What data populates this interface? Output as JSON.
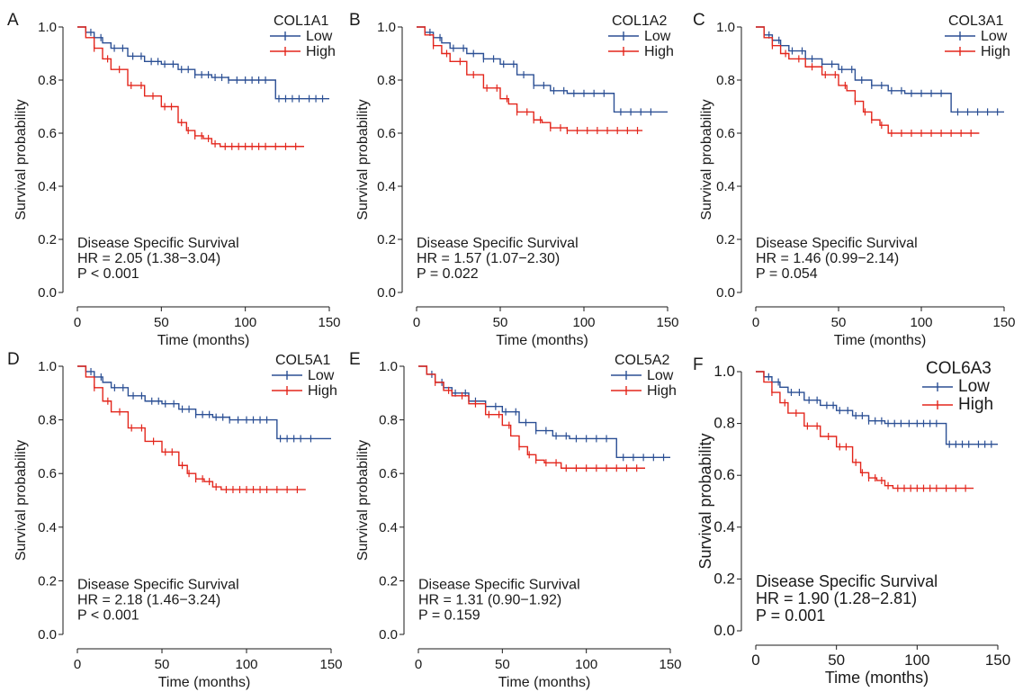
{
  "colors": {
    "low": "#2b4f94",
    "high": "#e3261c",
    "axis": "#1a1a1a"
  },
  "chart_data": [
    {
      "type": "line",
      "panel": "A",
      "gene": "COL1A1",
      "xlabel": "Time (months)",
      "ylabel": "Survival probability",
      "xlim": [
        0,
        150
      ],
      "ylim": [
        0,
        1
      ],
      "xticks": [
        "0",
        "50",
        "100",
        "150"
      ],
      "yticks": [
        "0.0",
        "0.2",
        "0.4",
        "0.6",
        "0.8",
        "1.0"
      ],
      "annotation": [
        "Disease Specific Survival",
        "HR = 2.05 (1.38−3.04)",
        "P < 0.001"
      ],
      "legend": {
        "title": "COL1A1",
        "entries": [
          "Low",
          "High"
        ]
      },
      "series": [
        {
          "name": "Low",
          "color": "#2b4f94",
          "x": [
            0,
            5,
            10,
            15,
            20,
            30,
            40,
            50,
            60,
            70,
            80,
            90,
            100,
            110,
            117,
            118,
            150
          ],
          "y": [
            1,
            0.98,
            0.96,
            0.94,
            0.92,
            0.89,
            0.87,
            0.86,
            0.84,
            0.82,
            0.81,
            0.8,
            0.8,
            0.8,
            0.8,
            0.73,
            0.73
          ],
          "censor_x": [
            8,
            14,
            22,
            27,
            33,
            38,
            44,
            48,
            52,
            57,
            62,
            66,
            70,
            74,
            78,
            82,
            86,
            90,
            95,
            100,
            104,
            108,
            112,
            120,
            124,
            128,
            132,
            138,
            142,
            146
          ]
        },
        {
          "name": "High",
          "color": "#e3261c",
          "x": [
            0,
            5,
            10,
            15,
            20,
            30,
            40,
            50,
            60,
            65,
            70,
            75,
            80,
            85,
            135
          ],
          "y": [
            1,
            0.96,
            0.92,
            0.88,
            0.84,
            0.78,
            0.74,
            0.7,
            0.64,
            0.61,
            0.59,
            0.58,
            0.56,
            0.55,
            0.55
          ],
          "censor_x": [
            10,
            18,
            25,
            32,
            38,
            45,
            52,
            56,
            62,
            66,
            70,
            74,
            78,
            82,
            88,
            92,
            96,
            100,
            104,
            108,
            112,
            118,
            124,
            130
          ]
        }
      ]
    },
    {
      "type": "line",
      "panel": "B",
      "gene": "COL1A2",
      "xlabel": "Time (months)",
      "ylabel": "Survival probability",
      "xlim": [
        0,
        150
      ],
      "ylim": [
        0,
        1
      ],
      "xticks": [
        "0",
        "50",
        "100",
        "150"
      ],
      "yticks": [
        "0.0",
        "0.2",
        "0.4",
        "0.6",
        "0.8",
        "1.0"
      ],
      "annotation": [
        "Disease Specific Survival",
        "HR = 1.57 (1.07−2.30)",
        "P = 0.022"
      ],
      "legend": {
        "title": "COL1A2",
        "entries": [
          "Low",
          "High"
        ]
      },
      "series": [
        {
          "name": "Low",
          "color": "#2b4f94",
          "x": [
            0,
            5,
            10,
            15,
            20,
            30,
            40,
            50,
            60,
            70,
            80,
            90,
            100,
            110,
            117,
            118,
            150
          ],
          "y": [
            1,
            0.98,
            0.96,
            0.94,
            0.92,
            0.9,
            0.88,
            0.86,
            0.82,
            0.78,
            0.76,
            0.75,
            0.75,
            0.75,
            0.75,
            0.68,
            0.68
          ],
          "censor_x": [
            8,
            14,
            22,
            28,
            34,
            40,
            46,
            52,
            58,
            64,
            70,
            76,
            82,
            88,
            94,
            100,
            106,
            112,
            122,
            128,
            134,
            140
          ]
        },
        {
          "name": "High",
          "color": "#e3261c",
          "x": [
            0,
            5,
            10,
            15,
            20,
            30,
            40,
            50,
            55,
            60,
            70,
            75,
            80,
            90,
            135
          ],
          "y": [
            1,
            0.97,
            0.93,
            0.9,
            0.87,
            0.82,
            0.77,
            0.73,
            0.71,
            0.68,
            0.65,
            0.64,
            0.62,
            0.61,
            0.61
          ],
          "censor_x": [
            10,
            18,
            26,
            34,
            42,
            48,
            54,
            60,
            66,
            70,
            74,
            80,
            86,
            90,
            96,
            102,
            108,
            114,
            120,
            126,
            132
          ]
        }
      ]
    },
    {
      "type": "line",
      "panel": "C",
      "gene": "COL3A1",
      "xlabel": "Time (months)",
      "ylabel": "Survival probability",
      "xlim": [
        0,
        150
      ],
      "ylim": [
        0,
        1
      ],
      "xticks": [
        "0",
        "50",
        "100",
        "150"
      ],
      "yticks": [
        "0.0",
        "0.2",
        "0.4",
        "0.6",
        "0.8",
        "1.0"
      ],
      "annotation": [
        "Disease Specific Survival",
        "HR = 1.46 (0.99−2.14)",
        "P = 0.054"
      ],
      "legend": {
        "title": "COL3A1",
        "entries": [
          "Low",
          "High"
        ]
      },
      "series": [
        {
          "name": "Low",
          "color": "#2b4f94",
          "x": [
            0,
            5,
            10,
            15,
            20,
            30,
            40,
            50,
            60,
            70,
            80,
            90,
            100,
            110,
            117,
            118,
            150
          ],
          "y": [
            1,
            0.97,
            0.95,
            0.93,
            0.91,
            0.88,
            0.86,
            0.84,
            0.8,
            0.78,
            0.76,
            0.75,
            0.75,
            0.75,
            0.75,
            0.68,
            0.68
          ],
          "censor_x": [
            8,
            14,
            22,
            28,
            34,
            40,
            46,
            52,
            58,
            64,
            70,
            76,
            82,
            88,
            94,
            100,
            106,
            112,
            122,
            128,
            134,
            140,
            146
          ]
        },
        {
          "name": "High",
          "color": "#e3261c",
          "x": [
            0,
            5,
            10,
            15,
            20,
            30,
            40,
            50,
            55,
            60,
            65,
            70,
            75,
            80,
            135
          ],
          "y": [
            1,
            0.96,
            0.93,
            0.9,
            0.88,
            0.85,
            0.82,
            0.78,
            0.76,
            0.72,
            0.68,
            0.65,
            0.63,
            0.6,
            0.6
          ],
          "censor_x": [
            10,
            18,
            26,
            34,
            42,
            48,
            54,
            60,
            66,
            70,
            76,
            82,
            88,
            94,
            100,
            106,
            112,
            118,
            124,
            130
          ]
        }
      ]
    },
    {
      "type": "line",
      "panel": "D",
      "gene": "COL5A1",
      "xlabel": "Time (months)",
      "ylabel": "Survival probability",
      "xlim": [
        0,
        150
      ],
      "ylim": [
        0,
        1
      ],
      "xticks": [
        "0",
        "50",
        "100",
        "150"
      ],
      "yticks": [
        "0.0",
        "0.2",
        "0.4",
        "0.6",
        "0.8",
        "1.0"
      ],
      "annotation": [
        "Disease Specific Survival",
        "HR = 2.18 (1.46−3.24)",
        "P < 0.001"
      ],
      "legend": {
        "title": "COL5A1",
        "entries": [
          "Low",
          "High"
        ]
      },
      "series": [
        {
          "name": "Low",
          "color": "#2b4f94",
          "x": [
            0,
            5,
            10,
            15,
            20,
            30,
            40,
            50,
            60,
            70,
            80,
            90,
            100,
            110,
            117,
            118,
            150
          ],
          "y": [
            1,
            0.98,
            0.96,
            0.94,
            0.92,
            0.89,
            0.87,
            0.86,
            0.84,
            0.82,
            0.81,
            0.8,
            0.8,
            0.8,
            0.8,
            0.73,
            0.73
          ],
          "censor_x": [
            8,
            14,
            22,
            27,
            33,
            38,
            44,
            48,
            52,
            57,
            62,
            66,
            70,
            74,
            78,
            82,
            86,
            90,
            95,
            100,
            104,
            108,
            112,
            120,
            124,
            128,
            132,
            138
          ]
        },
        {
          "name": "High",
          "color": "#e3261c",
          "x": [
            0,
            5,
            10,
            15,
            20,
            30,
            40,
            50,
            60,
            65,
            70,
            75,
            80,
            85,
            135
          ],
          "y": [
            1,
            0.96,
            0.92,
            0.87,
            0.83,
            0.77,
            0.72,
            0.68,
            0.63,
            0.6,
            0.58,
            0.57,
            0.55,
            0.54,
            0.54
          ],
          "censor_x": [
            10,
            18,
            25,
            32,
            38,
            45,
            52,
            56,
            62,
            66,
            70,
            74,
            78,
            82,
            88,
            92,
            96,
            100,
            104,
            108,
            112,
            118,
            124,
            130
          ]
        }
      ]
    },
    {
      "type": "line",
      "panel": "E",
      "gene": "COL5A2",
      "xlabel": "Time (months)",
      "ylabel": "Survival probability",
      "xlim": [
        0,
        150
      ],
      "ylim": [
        0,
        1
      ],
      "xticks": [
        "0",
        "50",
        "100",
        "150"
      ],
      "yticks": [
        "0.0",
        "0.2",
        "0.4",
        "0.6",
        "0.8",
        "1.0"
      ],
      "annotation": [
        "Disease Specific Survival",
        "HR = 1.31 (0.90−1.92)",
        "P = 0.159"
      ],
      "legend": {
        "title": "COL5A2",
        "entries": [
          "Low",
          "High"
        ]
      },
      "series": [
        {
          "name": "Low",
          "color": "#2b4f94",
          "x": [
            0,
            5,
            10,
            15,
            20,
            30,
            40,
            50,
            60,
            70,
            80,
            90,
            100,
            110,
            117,
            118,
            150
          ],
          "y": [
            1,
            0.97,
            0.94,
            0.92,
            0.9,
            0.87,
            0.85,
            0.83,
            0.79,
            0.76,
            0.74,
            0.73,
            0.73,
            0.73,
            0.73,
            0.66,
            0.66
          ],
          "censor_x": [
            8,
            14,
            22,
            28,
            34,
            40,
            46,
            52,
            58,
            64,
            70,
            76,
            82,
            88,
            94,
            100,
            106,
            112,
            122,
            128,
            134,
            140,
            146
          ]
        },
        {
          "name": "High",
          "color": "#e3261c",
          "x": [
            0,
            5,
            10,
            15,
            20,
            30,
            40,
            50,
            55,
            60,
            65,
            70,
            75,
            85,
            135
          ],
          "y": [
            1,
            0.97,
            0.94,
            0.91,
            0.89,
            0.86,
            0.82,
            0.78,
            0.74,
            0.7,
            0.67,
            0.65,
            0.64,
            0.62,
            0.62
          ],
          "censor_x": [
            10,
            18,
            26,
            34,
            42,
            48,
            54,
            60,
            66,
            70,
            76,
            82,
            88,
            94,
            100,
            106,
            112,
            118,
            124,
            130
          ]
        }
      ]
    },
    {
      "type": "line",
      "panel": "F",
      "gene": "COL6A3",
      "xlabel": "Time (months)",
      "ylabel": "Survival probability",
      "xlim": [
        0,
        150
      ],
      "ylim": [
        0,
        1
      ],
      "xticks": [
        "0",
        "50",
        "100",
        "150"
      ],
      "yticks": [
        "0.0",
        "0.2",
        "0.4",
        "0.6",
        "0.8",
        "1.0"
      ],
      "annotation": [
        "Disease Specific Survival",
        "HR = 1.90 (1.28−2.81)",
        "P = 0.001"
      ],
      "legend": {
        "title": "COL6A3",
        "entries": [
          "Low",
          "High"
        ]
      },
      "series": [
        {
          "name": "Low",
          "color": "#2b4f94",
          "x": [
            0,
            5,
            10,
            15,
            20,
            30,
            40,
            50,
            60,
            70,
            80,
            90,
            100,
            110,
            117,
            118,
            150
          ],
          "y": [
            1,
            0.98,
            0.96,
            0.94,
            0.92,
            0.89,
            0.87,
            0.85,
            0.83,
            0.81,
            0.8,
            0.8,
            0.8,
            0.8,
            0.8,
            0.72,
            0.72
          ],
          "censor_x": [
            8,
            14,
            22,
            27,
            33,
            38,
            44,
            48,
            52,
            57,
            62,
            66,
            70,
            74,
            78,
            82,
            86,
            90,
            95,
            100,
            104,
            108,
            112,
            120,
            124,
            128,
            132,
            138,
            142,
            146
          ]
        },
        {
          "name": "High",
          "color": "#e3261c",
          "x": [
            0,
            5,
            10,
            15,
            20,
            30,
            40,
            50,
            60,
            65,
            70,
            75,
            80,
            85,
            135
          ],
          "y": [
            1,
            0.96,
            0.92,
            0.88,
            0.84,
            0.79,
            0.75,
            0.71,
            0.65,
            0.61,
            0.59,
            0.58,
            0.56,
            0.55,
            0.55
          ],
          "censor_x": [
            10,
            18,
            25,
            32,
            38,
            45,
            52,
            56,
            62,
            66,
            70,
            74,
            78,
            82,
            88,
            92,
            96,
            100,
            104,
            108,
            112,
            118,
            124,
            130
          ]
        }
      ]
    }
  ]
}
